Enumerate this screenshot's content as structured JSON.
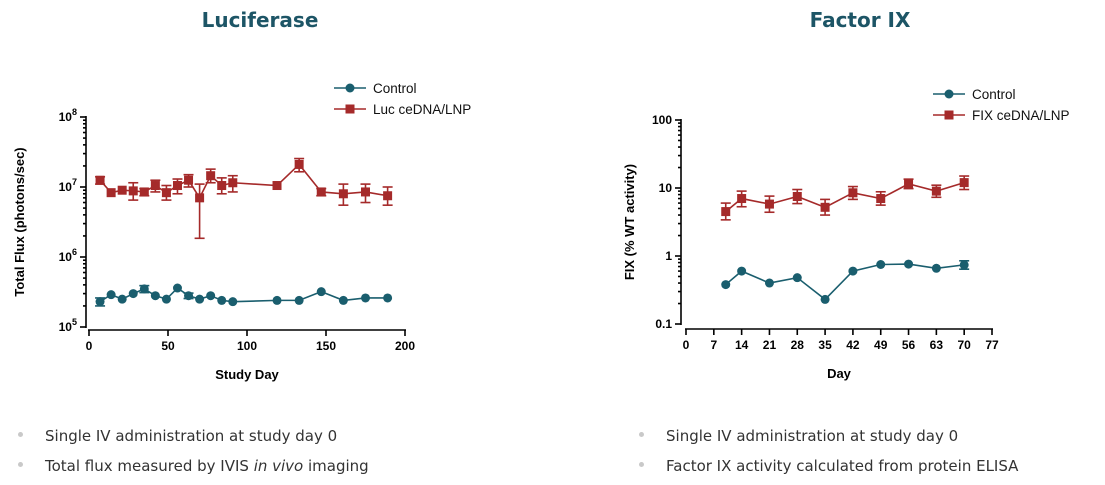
{
  "colors": {
    "control": "#1a5e6e",
    "treated": "#a52a2a",
    "title": "#1d5566"
  },
  "bullets_left": [
    "Single IV administration at study day 0",
    "Total flux measured by IVIS",
    "in vivo",
    "imaging"
  ],
  "bullets_right": [
    "Single IV administration at study day 0",
    "Factor IX activity calculated from protein ELISA"
  ],
  "chart_data": [
    {
      "type": "line",
      "title": "Luciferase",
      "xlabel": "Study Day",
      "ylabel": "Total  Flux (photons/sec)",
      "xlim": [
        0,
        200
      ],
      "xticks": [
        0,
        50,
        100,
        150,
        200
      ],
      "ylim": [
        100000,
        100000000
      ],
      "yscale": "log",
      "yticks": [
        {
          "value": 100000,
          "base": "10",
          "exp": "5"
        },
        {
          "value": 1000000,
          "base": "10",
          "exp": "6"
        },
        {
          "value": 10000000,
          "base": "10",
          "exp": "7"
        },
        {
          "value": 100000000,
          "base": "10",
          "exp": "8"
        }
      ],
      "legend_position": "top-right",
      "series": [
        {
          "name": "Control",
          "color": "#1a5e6e",
          "marker": "circle",
          "points": [
            {
              "x": 7,
              "y": 230000,
              "lo": 200000,
              "hi": 260000
            },
            {
              "x": 14,
              "y": 290000
            },
            {
              "x": 21,
              "y": 250000
            },
            {
              "x": 28,
              "y": 300000
            },
            {
              "x": 35,
              "y": 350000,
              "lo": 310000,
              "hi": 390000
            },
            {
              "x": 42,
              "y": 280000
            },
            {
              "x": 49,
              "y": 250000
            },
            {
              "x": 56,
              "y": 360000
            },
            {
              "x": 63,
              "y": 280000,
              "lo": 255000,
              "hi": 305000
            },
            {
              "x": 70,
              "y": 250000
            },
            {
              "x": 77,
              "y": 280000
            },
            {
              "x": 84,
              "y": 240000
            },
            {
              "x": 91,
              "y": 230000
            },
            {
              "x": 119,
              "y": 240000
            },
            {
              "x": 133,
              "y": 240000
            },
            {
              "x": 147,
              "y": 320000
            },
            {
              "x": 161,
              "y": 240000
            },
            {
              "x": 175,
              "y": 260000
            },
            {
              "x": 189,
              "y": 260000
            }
          ]
        },
        {
          "name": "Luc ceDNA/LNP",
          "color": "#a52a2a",
          "marker": "square",
          "points": [
            {
              "x": 7,
              "y": 12500000,
              "lo": 11000000,
              "hi": 14000000
            },
            {
              "x": 14,
              "y": 8300000
            },
            {
              "x": 21,
              "y": 9000000
            },
            {
              "x": 28,
              "y": 8800000,
              "lo": 6500000,
              "hi": 11500000
            },
            {
              "x": 35,
              "y": 8500000,
              "lo": 7500000,
              "hi": 9500000
            },
            {
              "x": 42,
              "y": 10500000,
              "lo": 8500000,
              "hi": 12500000
            },
            {
              "x": 49,
              "y": 8300000,
              "lo": 6500000,
              "hi": 10500000
            },
            {
              "x": 56,
              "y": 10500000,
              "lo": 8000000,
              "hi": 13000000
            },
            {
              "x": 63,
              "y": 12500000,
              "lo": 10000000,
              "hi": 15000000
            },
            {
              "x": 70,
              "y": 7000000,
              "lo": 1850000,
              "hi": 11000000
            },
            {
              "x": 77,
              "y": 14500000,
              "lo": 11500000,
              "hi": 18000000
            },
            {
              "x": 84,
              "y": 10500000,
              "lo": 8000000,
              "hi": 13500000
            },
            {
              "x": 91,
              "y": 11500000,
              "lo": 8500000,
              "hi": 14500000
            },
            {
              "x": 119,
              "y": 10500000
            },
            {
              "x": 133,
              "y": 21000000,
              "lo": 16500000,
              "hi": 25500000
            },
            {
              "x": 147,
              "y": 8500000,
              "lo": 7500000,
              "hi": 9500000
            },
            {
              "x": 161,
              "y": 8000000,
              "lo": 5500000,
              "hi": 11000000
            },
            {
              "x": 175,
              "y": 8500000,
              "lo": 6000000,
              "hi": 11000000
            },
            {
              "x": 189,
              "y": 7500000,
              "lo": 5500000,
              "hi": 10000000
            }
          ]
        }
      ]
    },
    {
      "type": "line",
      "title": "Factor IX",
      "xlabel": "Day",
      "ylabel": "FIX (%  WT activity)",
      "xlim": [
        0,
        77
      ],
      "xticks": [
        0,
        7,
        14,
        21,
        28,
        35,
        42,
        49,
        56,
        63,
        70,
        77
      ],
      "ylim": [
        0.1,
        100
      ],
      "yscale": "log",
      "yticks": [
        {
          "value": 0.1,
          "label": "0.1"
        },
        {
          "value": 1,
          "label": "1"
        },
        {
          "value": 10,
          "label": "10"
        },
        {
          "value": 100,
          "label": "100"
        }
      ],
      "legend_position": "top-right",
      "series": [
        {
          "name": "Control",
          "color": "#1a5e6e",
          "marker": "circle",
          "points": [
            {
              "x": 10,
              "y": 0.38
            },
            {
              "x": 14,
              "y": 0.6
            },
            {
              "x": 21,
              "y": 0.4
            },
            {
              "x": 28,
              "y": 0.48
            },
            {
              "x": 35,
              "y": 0.23
            },
            {
              "x": 42,
              "y": 0.6
            },
            {
              "x": 49,
              "y": 0.75
            },
            {
              "x": 56,
              "y": 0.76
            },
            {
              "x": 63,
              "y": 0.66
            },
            {
              "x": 70,
              "y": 0.74,
              "lo": 0.64,
              "hi": 0.85
            }
          ]
        },
        {
          "name": "FIX ceDNA/LNP",
          "color": "#a52a2a",
          "marker": "square",
          "points": [
            {
              "x": 10,
              "y": 4.5,
              "lo": 3.4,
              "hi": 6.0
            },
            {
              "x": 14,
              "y": 7.0,
              "lo": 5.3,
              "hi": 9.0
            },
            {
              "x": 21,
              "y": 5.8,
              "lo": 4.4,
              "hi": 7.6
            },
            {
              "x": 28,
              "y": 7.5,
              "lo": 5.9,
              "hi": 9.5
            },
            {
              "x": 35,
              "y": 5.2,
              "lo": 4.0,
              "hi": 6.8
            },
            {
              "x": 42,
              "y": 8.5,
              "lo": 6.8,
              "hi": 10.5
            },
            {
              "x": 49,
              "y": 7.0,
              "lo": 5.6,
              "hi": 8.8
            },
            {
              "x": 56,
              "y": 11.5,
              "lo": 9.8,
              "hi": 13.5
            },
            {
              "x": 63,
              "y": 9.0,
              "lo": 7.3,
              "hi": 11.0
            },
            {
              "x": 70,
              "y": 12.0,
              "lo": 9.5,
              "hi": 15.0
            }
          ]
        }
      ]
    }
  ]
}
